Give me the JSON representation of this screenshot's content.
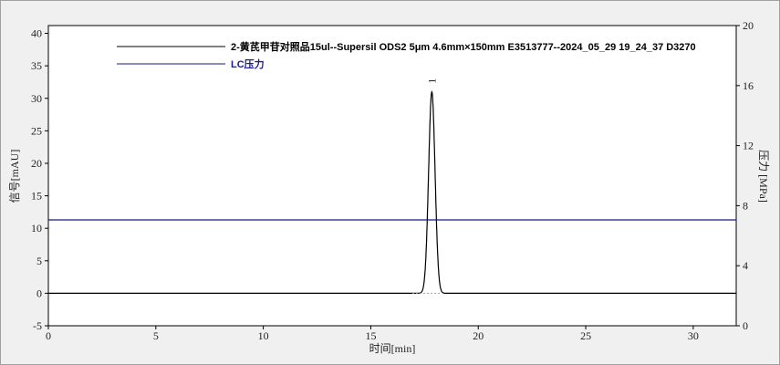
{
  "chart_data": {
    "type": "line",
    "xlabel": "时间[min]",
    "ylabel": "信号[mAU]",
    "y2label": "压力 [MPa]",
    "xlim": [
      0,
      32
    ],
    "ylim": [
      -5,
      41.2
    ],
    "y2lim": [
      0,
      20
    ],
    "xticks": [
      0,
      5,
      10,
      15,
      20,
      25,
      30
    ],
    "yticks": [
      -5,
      0,
      5,
      10,
      15,
      20,
      25,
      30,
      35,
      40
    ],
    "y2ticks": [
      0,
      4,
      8,
      12,
      16,
      20
    ],
    "grid": false,
    "legend_position": "top-left",
    "series": [
      {
        "name": "2-黄芪甲苷对照品15ul--Supersil ODS2 5μm  4.6mm×150mm   E3513777--2024_05_29 19_24_37 D3270",
        "axis": "left",
        "color": "#000000",
        "baseline": 0,
        "peaks": [
          {
            "label": "1",
            "retention_time": 17.84,
            "height": 31.0,
            "sigma": 0.15
          }
        ]
      },
      {
        "name": "LC压力",
        "axis": "right",
        "color": "#1a1a7a",
        "value": 7.05
      }
    ]
  }
}
